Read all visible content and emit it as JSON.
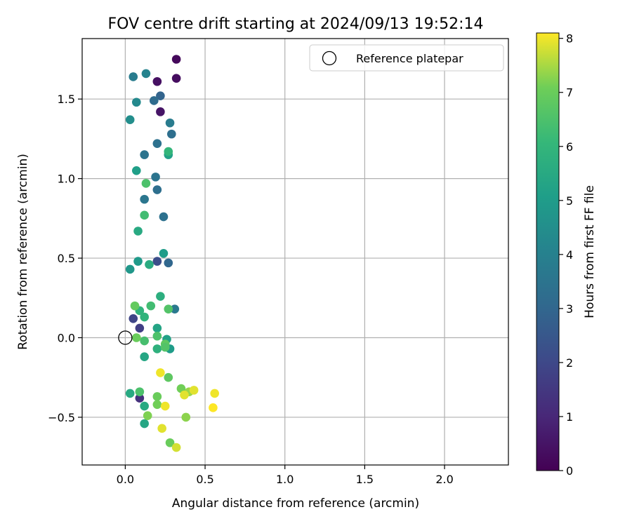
{
  "chart_data": {
    "type": "scatter",
    "title": "FOV centre drift starting at 2024/09/13 19:52:14",
    "xlabel": "Angular distance from reference (arcmin)",
    "ylabel": "Rotation from reference (arcmin)",
    "xlim": [
      -0.27,
      2.4
    ],
    "ylim": [
      -0.8,
      1.88
    ],
    "xticks": [
      0.0,
      0.5,
      1.0,
      1.5,
      2.0
    ],
    "xtick_labels": [
      "0.0",
      "0.5",
      "1.0",
      "1.5",
      "2.0"
    ],
    "yticks": [
      -0.5,
      0.0,
      0.5,
      1.0,
      1.5
    ],
    "ytick_labels": [
      "−0.5",
      "0.0",
      "0.5",
      "1.0",
      "1.5"
    ],
    "grid": true,
    "legend": {
      "placement": "top-right",
      "entries": [
        "Reference platepar"
      ]
    },
    "reference_point": {
      "x": 0.0,
      "y": 0.0
    },
    "colorbar": {
      "label": "Hours from first FF file",
      "colormap": "viridis",
      "range": [
        0,
        8.1
      ],
      "ticks": [
        0,
        1,
        2,
        3,
        4,
        5,
        6,
        7,
        8
      ],
      "tick_labels": [
        "0",
        "1",
        "2",
        "3",
        "4",
        "5",
        "6",
        "7",
        "8"
      ]
    },
    "points": [
      {
        "x": 0.32,
        "y": 1.75,
        "c": 0.2
      },
      {
        "x": 0.32,
        "y": 1.63,
        "c": 0.3
      },
      {
        "x": 0.2,
        "y": 1.61,
        "c": 0.4
      },
      {
        "x": 0.22,
        "y": 1.42,
        "c": 0.5
      },
      {
        "x": 0.09,
        "y": -0.38,
        "c": 1.3
      },
      {
        "x": 0.09,
        "y": 0.06,
        "c": 1.7
      },
      {
        "x": 0.05,
        "y": 0.12,
        "c": 1.9
      },
      {
        "x": 0.2,
        "y": 0.48,
        "c": 2.2
      },
      {
        "x": 0.27,
        "y": 0.47,
        "c": 3.0
      },
      {
        "x": 0.22,
        "y": 1.52,
        "c": 2.9
      },
      {
        "x": 0.18,
        "y": 1.49,
        "c": 3.2
      },
      {
        "x": 0.29,
        "y": 1.28,
        "c": 3.3
      },
      {
        "x": 0.2,
        "y": 1.22,
        "c": 3.4
      },
      {
        "x": 0.19,
        "y": 1.01,
        "c": 3.5
      },
      {
        "x": 0.2,
        "y": 0.93,
        "c": 3.3
      },
      {
        "x": 0.12,
        "y": 0.87,
        "c": 3.6
      },
      {
        "x": 0.24,
        "y": 0.76,
        "c": 3.4
      },
      {
        "x": 0.12,
        "y": 1.15,
        "c": 3.5
      },
      {
        "x": 0.28,
        "y": 1.35,
        "c": 3.8
      },
      {
        "x": 0.31,
        "y": 0.18,
        "c": 3.7
      },
      {
        "x": 0.05,
        "y": 1.64,
        "c": 3.8
      },
      {
        "x": 0.13,
        "y": 1.66,
        "c": 4.1
      },
      {
        "x": 0.07,
        "y": 1.48,
        "c": 4.3
      },
      {
        "x": 0.03,
        "y": 1.37,
        "c": 4.5
      },
      {
        "x": 0.03,
        "y": 0.43,
        "c": 4.8
      },
      {
        "x": 0.08,
        "y": 0.48,
        "c": 4.9
      },
      {
        "x": 0.24,
        "y": 0.53,
        "c": 5.0
      },
      {
        "x": 0.07,
        "y": 1.05,
        "c": 5.1
      },
      {
        "x": 0.27,
        "y": 1.15,
        "c": 5.2
      },
      {
        "x": 0.28,
        "y": -0.07,
        "c": 5.0
      },
      {
        "x": 0.26,
        "y": -0.01,
        "c": 5.2
      },
      {
        "x": 0.2,
        "y": 0.06,
        "c": 5.3
      },
      {
        "x": 0.12,
        "y": -0.12,
        "c": 5.4
      },
      {
        "x": 0.12,
        "y": -0.54,
        "c": 5.4
      },
      {
        "x": 0.12,
        "y": -0.43,
        "c": 5.5
      },
      {
        "x": 0.03,
        "y": -0.35,
        "c": 5.5
      },
      {
        "x": 0.08,
        "y": 0.67,
        "c": 5.5
      },
      {
        "x": 0.15,
        "y": 0.46,
        "c": 5.6
      },
      {
        "x": 0.22,
        "y": 0.26,
        "c": 5.7
      },
      {
        "x": 0.2,
        "y": -0.07,
        "c": 5.8
      },
      {
        "x": 0.12,
        "y": 0.13,
        "c": 5.9
      },
      {
        "x": 0.09,
        "y": 0.17,
        "c": 5.9
      },
      {
        "x": 0.27,
        "y": 1.17,
        "c": 6.0
      },
      {
        "x": 0.12,
        "y": 0.77,
        "c": 6.3
      },
      {
        "x": 0.13,
        "y": 0.97,
        "c": 6.5
      },
      {
        "x": 0.16,
        "y": 0.2,
        "c": 6.3
      },
      {
        "x": 0.27,
        "y": 0.18,
        "c": 6.6
      },
      {
        "x": 0.12,
        "y": -0.02,
        "c": 6.4
      },
      {
        "x": 0.2,
        "y": 0.01,
        "c": 6.5
      },
      {
        "x": 0.25,
        "y": -0.04,
        "c": 6.8
      },
      {
        "x": 0.25,
        "y": -0.06,
        "c": 6.6
      },
      {
        "x": 0.07,
        "y": 0.0,
        "c": 7.0
      },
      {
        "x": 0.06,
        "y": 0.2,
        "c": 6.9
      },
      {
        "x": 0.09,
        "y": -0.34,
        "c": 6.5
      },
      {
        "x": 0.27,
        "y": -0.25,
        "c": 6.8
      },
      {
        "x": 0.2,
        "y": -0.37,
        "c": 7.0
      },
      {
        "x": 0.2,
        "y": -0.42,
        "c": 7.1
      },
      {
        "x": 0.14,
        "y": -0.49,
        "c": 7.2
      },
      {
        "x": 0.28,
        "y": -0.66,
        "c": 7.0
      },
      {
        "x": 0.35,
        "y": -0.32,
        "c": 7.1
      },
      {
        "x": 0.38,
        "y": -0.5,
        "c": 7.3
      },
      {
        "x": 0.4,
        "y": -0.34,
        "c": 7.4
      },
      {
        "x": 0.37,
        "y": -0.36,
        "c": 7.9
      },
      {
        "x": 0.43,
        "y": -0.33,
        "c": 7.9
      },
      {
        "x": 0.22,
        "y": -0.22,
        "c": 8.0
      },
      {
        "x": 0.25,
        "y": -0.43,
        "c": 8.0
      },
      {
        "x": 0.23,
        "y": -0.57,
        "c": 7.9
      },
      {
        "x": 0.32,
        "y": -0.69,
        "c": 7.8
      },
      {
        "x": 0.56,
        "y": -0.35,
        "c": 8.0
      },
      {
        "x": 0.55,
        "y": -0.44,
        "c": 8.1
      }
    ]
  }
}
